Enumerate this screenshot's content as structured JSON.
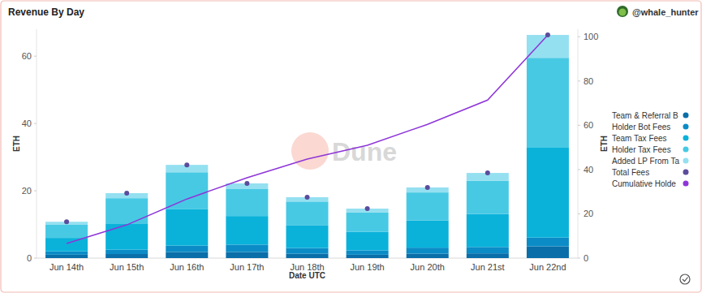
{
  "chart_data": {
    "type": "bar",
    "title": "Revenue By Day",
    "subtitle": "@whale_hunter",
    "annotations": [
      "Dune"
    ],
    "x_label": "Date UTC",
    "y_label": "ETH",
    "y2_label": "ETH",
    "categories": [
      "Jun 14th",
      "Jun 15th",
      "Jun 16th",
      "Jun 17th",
      "Jun 18th",
      "Jun 19th",
      "Jun 20th",
      "Jun 21st",
      "Jun 22nd"
    ],
    "stacked": true,
    "grid": false,
    "legend": "right",
    "ylim": [
      0,
      68
    ],
    "yticks": [
      0,
      20,
      40,
      60
    ],
    "y2lim": [
      0,
      103.4
    ],
    "y2ticks": [
      0,
      20,
      40,
      60,
      80,
      100
    ],
    "series": [
      {
        "name": "Team & Referral B",
        "type": "bar",
        "color": "#0a6ea8",
        "values": [
          1.0,
          1.2,
          1.8,
          1.8,
          1.3,
          1.0,
          1.3,
          1.4,
          3.5
        ]
      },
      {
        "name": "Holder Bot Fees",
        "type": "bar",
        "color": "#0b8cc6",
        "values": [
          1.0,
          1.3,
          1.9,
          2.2,
          1.7,
          1.3,
          1.8,
          1.9,
          2.6
        ]
      },
      {
        "name": "Team Tax Fees",
        "type": "bar",
        "color": "#0ab2da",
        "values": [
          4.0,
          7.8,
          10.8,
          8.5,
          6.8,
          5.5,
          8.1,
          9.8,
          26.7
        ]
      },
      {
        "name": "Holder Tax Fees",
        "type": "bar",
        "color": "#47c9e4",
        "values": [
          3.9,
          7.5,
          11.0,
          8.0,
          7.0,
          5.8,
          8.3,
          9.9,
          26.7
        ]
      },
      {
        "name": "Added LP From Ta",
        "type": "bar",
        "color": "#94e0f1",
        "values": [
          0.9,
          1.5,
          2.2,
          1.7,
          1.3,
          1.1,
          1.5,
          2.3,
          6.8
        ]
      },
      {
        "name": "Total Fees",
        "type": "scatter",
        "marker": "circle",
        "color": "#5b4c9c",
        "values": [
          10.8,
          19.3,
          27.7,
          22.2,
          18.1,
          14.7,
          21.0,
          25.3,
          66.3
        ]
      },
      {
        "name": "Cumulative Holde",
        "type": "line",
        "axis": "y2",
        "color": "#8e35d8",
        "values": [
          6.6,
          15.0,
          26.7,
          36.3,
          44.7,
          51.0,
          60.4,
          71.4,
          100.7
        ]
      }
    ]
  }
}
